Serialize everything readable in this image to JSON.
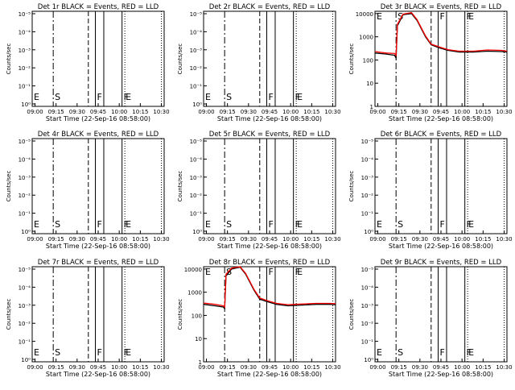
{
  "chart_data": [
    {
      "type": "line",
      "title": "Det 1r BLACK = Events, RED = LLD",
      "xlabel": "Start Time (22-Sep-16 08:58:00)",
      "ylabel": "Counts/sec",
      "x_ticks": [
        "09:00",
        "09:15",
        "09:30",
        "09:45",
        "10:00",
        "10:15",
        "10:30"
      ],
      "y_ticks": [
        "10⁰",
        "10⁻¹",
        "10⁻²",
        "10⁻³",
        "10⁻⁴",
        "10⁻⁵"
      ],
      "has_data": false,
      "series": []
    },
    {
      "type": "line",
      "title": "Det 2r BLACK = Events, RED = LLD",
      "xlabel": "Start Time (22-Sep-16 08:58:00)",
      "ylabel": "Counts/sec",
      "x_ticks": [
        "09:00",
        "09:15",
        "09:30",
        "09:45",
        "10:00",
        "10:15",
        "10:30"
      ],
      "y_ticks": [
        "10⁰",
        "10⁻¹",
        "10⁻²",
        "10⁻³",
        "10⁻⁴",
        "10⁻⁵"
      ],
      "has_data": false,
      "series": []
    },
    {
      "type": "line",
      "title": "Det 3r BLACK = Events, RED = LLD",
      "xlabel": "Start Time (22-Sep-16 08:58:00)",
      "ylabel": "Counts/sec",
      "x_ticks": [
        "09:00",
        "09:15",
        "09:30",
        "09:45",
        "10:00",
        "10:15",
        "10:30"
      ],
      "y_ticks": [
        "1",
        "10",
        "100",
        "1000",
        "10000"
      ],
      "has_data": true,
      "series": [
        {
          "color": "#000000",
          "points": [
            [
              0,
              200
            ],
            [
              8,
              180
            ],
            [
              14,
              160
            ],
            [
              15,
              120
            ],
            [
              16,
              3000
            ],
            [
              20,
              9000
            ],
            [
              26,
              10000
            ],
            [
              30,
              5000
            ],
            [
              36,
              1000
            ],
            [
              40,
              450
            ],
            [
              46,
              330
            ],
            [
              52,
              260
            ],
            [
              60,
              220
            ],
            [
              70,
              220
            ],
            [
              80,
              240
            ],
            [
              90,
              230
            ],
            [
              94,
              220
            ]
          ]
        },
        {
          "color": "#ff0000",
          "points": [
            [
              0,
              230
            ],
            [
              8,
              200
            ],
            [
              14,
              190
            ],
            [
              15,
              160
            ],
            [
              16,
              3500
            ],
            [
              20,
              9500
            ],
            [
              26,
              11000
            ],
            [
              30,
              5500
            ],
            [
              36,
              1100
            ],
            [
              40,
              480
            ],
            [
              46,
              360
            ],
            [
              52,
              280
            ],
            [
              60,
              240
            ],
            [
              70,
              240
            ],
            [
              80,
              270
            ],
            [
              90,
              260
            ],
            [
              94,
              240
            ]
          ]
        }
      ]
    },
    {
      "type": "line",
      "title": "Det 4r BLACK = Events, RED = LLD",
      "xlabel": "Start Time (22-Sep-16 08:58:00)",
      "ylabel": "Counts/sec",
      "x_ticks": [
        "09:00",
        "09:15",
        "09:30",
        "09:45",
        "10:00",
        "10:15",
        "10:30"
      ],
      "y_ticks": [
        "10⁰",
        "10⁻¹",
        "10⁻²",
        "10⁻³",
        "10⁻⁴",
        "10⁻⁵"
      ],
      "has_data": false,
      "series": []
    },
    {
      "type": "line",
      "title": "Det 5r BLACK = Events, RED = LLD",
      "xlabel": "Start Time (22-Sep-16 08:58:00)",
      "ylabel": "Counts/sec",
      "x_ticks": [
        "09:00",
        "09:15",
        "09:30",
        "09:45",
        "10:00",
        "10:15",
        "10:30"
      ],
      "y_ticks": [
        "10⁰",
        "10⁻¹",
        "10⁻²",
        "10⁻³",
        "10⁻⁴",
        "10⁻⁵"
      ],
      "has_data": false,
      "series": []
    },
    {
      "type": "line",
      "title": "Det 6r BLACK = Events, RED = LLD",
      "xlabel": "Start Time (22-Sep-16 08:58:00)",
      "ylabel": "Counts/sec",
      "x_ticks": [
        "09:00",
        "09:15",
        "09:30",
        "09:45",
        "10:00",
        "10:15",
        "10:30"
      ],
      "y_ticks": [
        "10⁰",
        "10⁻¹",
        "10⁻²",
        "10⁻³",
        "10⁻⁴",
        "10⁻⁵"
      ],
      "has_data": false,
      "series": []
    },
    {
      "type": "line",
      "title": "Det 7r BLACK = Events, RED = LLD",
      "xlabel": "Start Time (22-Sep-16 08:58:00)",
      "ylabel": "Counts/sec",
      "x_ticks": [
        "09:00",
        "09:15",
        "09:30",
        "09:45",
        "10:00",
        "10:15",
        "10:30"
      ],
      "y_ticks": [
        "10⁰",
        "10⁻¹",
        "10⁻²",
        "10⁻³",
        "10⁻⁴",
        "10⁻⁵"
      ],
      "has_data": false,
      "series": []
    },
    {
      "type": "line",
      "title": "Det 8r BLACK = Events, RED = LLD",
      "xlabel": "Start Time (22-Sep-16 08:58:00)",
      "ylabel": "Counts/sec",
      "x_ticks": [
        "09:00",
        "09:15",
        "09:30",
        "09:45",
        "10:00",
        "10:15",
        "10:30"
      ],
      "y_ticks": [
        "1",
        "10",
        "100",
        "1000",
        "10000"
      ],
      "has_data": true,
      "series": [
        {
          "color": "#000000",
          "points": [
            [
              0,
              300
            ],
            [
              8,
              260
            ],
            [
              14,
              230
            ],
            [
              15,
              200
            ],
            [
              16,
              5000
            ],
            [
              20,
              10000
            ],
            [
              26,
              12000
            ],
            [
              30,
              6000
            ],
            [
              36,
              1200
            ],
            [
              40,
              500
            ],
            [
              46,
              380
            ],
            [
              52,
              300
            ],
            [
              60,
              260
            ],
            [
              70,
              280
            ],
            [
              80,
              300
            ],
            [
              90,
              300
            ],
            [
              94,
              290
            ]
          ]
        },
        {
          "color": "#ff0000",
          "points": [
            [
              0,
              340
            ],
            [
              8,
              300
            ],
            [
              14,
              260
            ],
            [
              15,
              230
            ],
            [
              16,
              6000
            ],
            [
              20,
              11000
            ],
            [
              26,
              13000
            ],
            [
              30,
              6500
            ],
            [
              36,
              1300
            ],
            [
              40,
              560
            ],
            [
              46,
              420
            ],
            [
              52,
              330
            ],
            [
              60,
              290
            ],
            [
              70,
              310
            ],
            [
              80,
              330
            ],
            [
              90,
              330
            ],
            [
              94,
              320
            ]
          ]
        }
      ]
    },
    {
      "type": "line",
      "title": "Det 9r BLACK = Events, RED = LLD",
      "xlabel": "Start Time (22-Sep-16 08:58:00)",
      "ylabel": "Counts/sec",
      "x_ticks": [
        "09:00",
        "09:15",
        "09:30",
        "09:45",
        "10:00",
        "10:15",
        "10:30"
      ],
      "y_ticks": [
        "10⁰",
        "10⁻¹",
        "10⁻²",
        "10⁻³",
        "10⁻⁴",
        "10⁻⁵"
      ],
      "has_data": false,
      "series": []
    }
  ],
  "markers": [
    {
      "label": "E",
      "x_min": 0,
      "style": "none"
    },
    {
      "label": "S",
      "x_min": 15,
      "style": "dashdot"
    },
    {
      "label": "",
      "x_min": 40,
      "style": "dashed"
    },
    {
      "label": "F",
      "x_min": 45,
      "style": "solid"
    },
    {
      "label": "",
      "x_min": 51,
      "style": "solid"
    },
    {
      "label": "F",
      "x_min": 64,
      "style": "solid"
    },
    {
      "label": "E",
      "x_min": 66,
      "style": "dotted"
    },
    {
      "label": "",
      "x_min": 92,
      "style": "dotted"
    }
  ],
  "x_range_min": [
    0,
    94
  ],
  "colors": {
    "events": "#000000",
    "lld": "#ff0000"
  }
}
